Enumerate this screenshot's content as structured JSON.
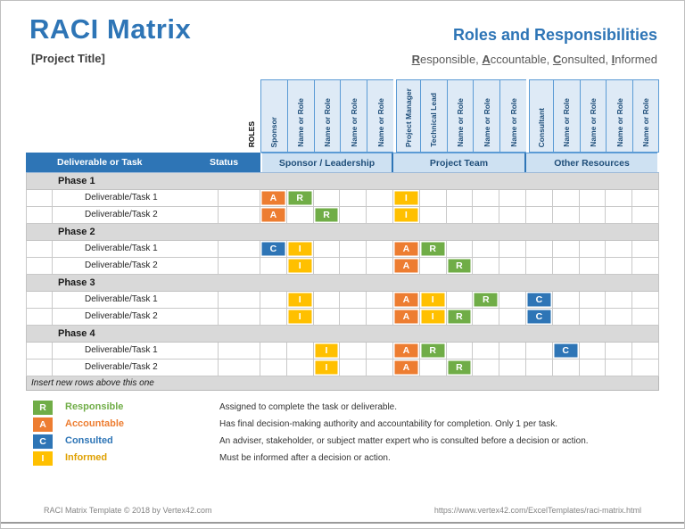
{
  "header": {
    "title": "RACI Matrix",
    "project_title": "[Project Title]",
    "right_title": "Roles and Responsibilities",
    "subtitle_segments": [
      {
        "text": "R",
        "underline": true
      },
      {
        "text": "esponsible, ",
        "underline": false
      },
      {
        "text": "A",
        "underline": true
      },
      {
        "text": "ccountable, ",
        "underline": false
      },
      {
        "text": "C",
        "underline": true
      },
      {
        "text": "onsulted, ",
        "underline": false
      },
      {
        "text": "I",
        "underline": true
      },
      {
        "text": "nformed",
        "underline": false
      }
    ]
  },
  "matrix": {
    "roles_label": "ROLES",
    "corner_header": "Deliverable or Task",
    "status_header": "Status",
    "groups": [
      {
        "label": "Sponsor / Leadership",
        "columns": [
          "Sponsor",
          "Name or Role",
          "Name or Role",
          "Name or Role",
          "Name or Role"
        ]
      },
      {
        "label": "Project Team",
        "columns": [
          "Project Manager",
          "Technical Lead",
          "Name or Role",
          "Name or Role",
          "Name or Role"
        ]
      },
      {
        "label": "Other Resources",
        "columns": [
          "Consultant",
          "Name or Role",
          "Name or Role",
          "Name or Role",
          "Name or Role"
        ]
      }
    ],
    "phases": [
      {
        "label": "Phase 1",
        "tasks": [
          {
            "label": "Deliverable/Task 1",
            "status": "",
            "assignments": {
              "1": "A",
              "2": "R",
              "6": "I"
            }
          },
          {
            "label": "Deliverable/Task 2",
            "status": "",
            "assignments": {
              "1": "A",
              "3": "R",
              "6": "I"
            }
          }
        ]
      },
      {
        "label": "Phase 2",
        "tasks": [
          {
            "label": "Deliverable/Task 1",
            "status": "",
            "assignments": {
              "1": "C",
              "2": "I",
              "6": "A",
              "7": "R"
            }
          },
          {
            "label": "Deliverable/Task 2",
            "status": "",
            "assignments": {
              "2": "I",
              "6": "A",
              "8": "R"
            }
          }
        ]
      },
      {
        "label": "Phase 3",
        "tasks": [
          {
            "label": "Deliverable/Task 1",
            "status": "",
            "assignments": {
              "2": "I",
              "6": "A",
              "7": "I",
              "9": "R",
              "11": "C"
            }
          },
          {
            "label": "Deliverable/Task 2",
            "status": "",
            "assignments": {
              "2": "I",
              "6": "A",
              "7": "I",
              "8": "R",
              "11": "C"
            }
          }
        ]
      },
      {
        "label": "Phase 4",
        "tasks": [
          {
            "label": "Deliverable/Task 1",
            "status": "",
            "assignments": {
              "3": "I",
              "6": "A",
              "7": "R",
              "12": "C"
            }
          },
          {
            "label": "Deliverable/Task 2",
            "status": "",
            "assignments": {
              "3": "I",
              "6": "A",
              "8": "R"
            }
          }
        ]
      }
    ],
    "insert_row_label": "Insert new rows above this one"
  },
  "raci_colors": {
    "R": "#70AD47",
    "A": "#ED7D31",
    "C": "#2E75B6",
    "I": "#FFC000"
  },
  "legend": [
    {
      "letter": "R",
      "label": "Responsible",
      "box_color": "#70AD47",
      "label_color": "#70AD47",
      "description": "Assigned to complete the task or deliverable."
    },
    {
      "letter": "A",
      "label": "Accountable",
      "box_color": "#ED7D31",
      "label_color": "#ED7D31",
      "description": "Has final decision-making authority and accountability for completion. Only 1 per task."
    },
    {
      "letter": "C",
      "label": "Consulted",
      "box_color": "#2E75B6",
      "label_color": "#2E75B6",
      "description": "An adviser, stakeholder, or subject matter expert who is consulted before a decision or action."
    },
    {
      "letter": "I",
      "label": "Informed",
      "box_color": "#FFC000",
      "label_color": "#DFA000",
      "description": "Must be informed after a decision or action."
    }
  ],
  "footer": {
    "left": "RACI Matrix Template © 2018 by Vertex42.com",
    "right": "https://www.vertex42.com/ExcelTemplates/raci-matrix.html"
  }
}
